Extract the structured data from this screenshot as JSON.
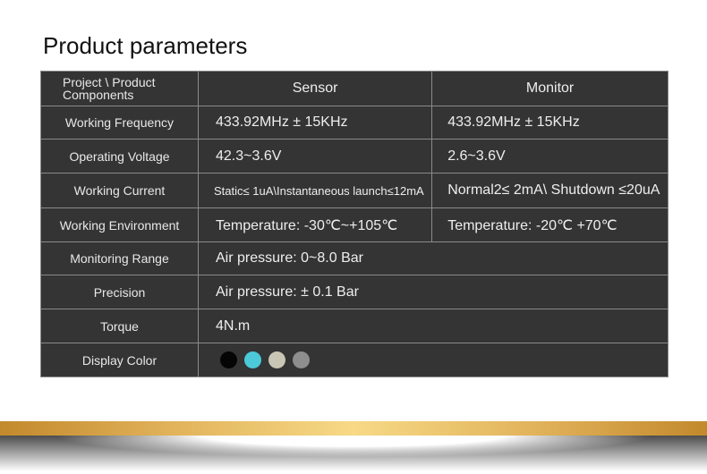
{
  "title": "Product parameters",
  "header": {
    "label": "Project \\ Product Components",
    "col1": "Sensor",
    "col2": "Monitor"
  },
  "rows": [
    {
      "label": "Working Frequency",
      "sensor": "433.92MHz ± 15KHz",
      "monitor": "433.92MHz ± 15KHz"
    },
    {
      "label": "Operating Voltage",
      "sensor": "42.3~3.6V",
      "monitor": "2.6~3.6V"
    },
    {
      "label": "Working Current",
      "sensor": "Static≤ 1uA\\Instantaneous launch≤12mA",
      "monitor": "Normal2≤ 2mA\\ Shutdown ≤20uA"
    },
    {
      "label": "Working Environment",
      "sensor": "Temperature: -30℃~+105℃",
      "monitor": "Temperature: -20℃  +70℃"
    },
    {
      "label": "Monitoring Range",
      "value": "Air pressure: 0~8.0 Bar"
    },
    {
      "label": "Precision",
      "value": "Air pressure: ± 0.1 Bar"
    },
    {
      "label": "Torque",
      "value": "4N.m"
    },
    {
      "label": "Display Color"
    }
  ],
  "display_colors": [
    "#050505",
    "#4cc9d9",
    "#c9c6b6",
    "#8e8e8e"
  ],
  "colors": {
    "table_bg": "#343434",
    "gold": "#f7d986"
  }
}
